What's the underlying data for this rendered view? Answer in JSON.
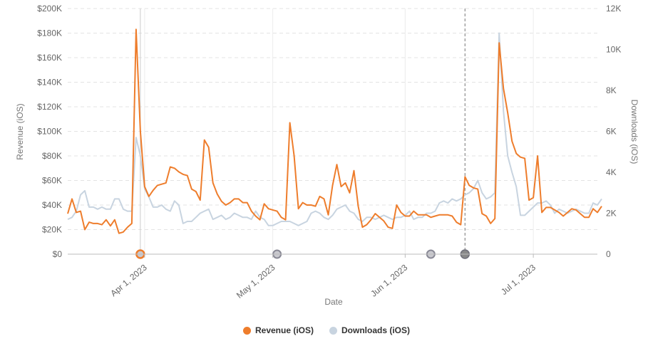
{
  "chart_data": {
    "type": "line",
    "xlabel": "Date",
    "ylabel_left": "Revenue (iOS)",
    "ylabel_right": "Downloads (iOS)",
    "y_left_ticks": [
      "$0",
      "$20K",
      "$40K",
      "$60K",
      "$80K",
      "$100K",
      "$120K",
      "$140K",
      "$160K",
      "$180K",
      "$200K"
    ],
    "y_right_ticks": [
      "0",
      "2K",
      "4K",
      "6K",
      "8K",
      "10K",
      "12K"
    ],
    "ylim_left": [
      0,
      200000
    ],
    "ylim_right": [
      0,
      12000
    ],
    "xlim": [
      "2023-03-14",
      "2023-07-16"
    ],
    "x_ticks": [
      {
        "date": "2023-04-01",
        "label": "Apr 1, 2023"
      },
      {
        "date": "2023-05-01",
        "label": "May 1, 2023"
      },
      {
        "date": "2023-06-01",
        "label": "Jun 1, 2023"
      },
      {
        "date": "2023-07-01",
        "label": "Jul 1, 2023"
      }
    ],
    "grid": true,
    "legend_position": "bottom-center",
    "start_date": "2023-03-14",
    "series": [
      {
        "name": "Revenue (iOS)",
        "axis": "left",
        "color": "#ee7d2c",
        "values": [
          33000,
          45000,
          34000,
          35000,
          20000,
          26000,
          25000,
          25000,
          24000,
          28000,
          23000,
          28000,
          17000,
          18000,
          22000,
          25000,
          183000,
          100000,
          55000,
          47000,
          52000,
          56000,
          57000,
          58000,
          71000,
          70000,
          67000,
          65000,
          64000,
          53000,
          51000,
          44000,
          93000,
          87000,
          58000,
          49000,
          43000,
          40000,
          42000,
          45000,
          45000,
          42000,
          42000,
          35000,
          31000,
          28000,
          41000,
          37000,
          36000,
          35000,
          30000,
          28000,
          107000,
          80000,
          37000,
          42000,
          40000,
          40000,
          39000,
          47000,
          45000,
          32000,
          56000,
          73000,
          55000,
          58000,
          50000,
          68000,
          39000,
          22000,
          24000,
          28000,
          33000,
          30000,
          27000,
          22000,
          21000,
          40000,
          34000,
          31000,
          31000,
          35000,
          32000,
          32000,
          32000,
          30000,
          31000,
          32000,
          32000,
          32000,
          31000,
          26000,
          24000,
          63000,
          56000,
          54000,
          53000,
          33000,
          31000,
          25000,
          29000,
          172000,
          135000,
          115000,
          92000,
          82000,
          79000,
          78000,
          44000,
          46000,
          80000,
          34000,
          38000,
          38000,
          36000,
          34000,
          31000,
          34000,
          37000,
          36000,
          33000,
          30000,
          30000,
          37000,
          34000,
          39000
        ],
        "markers": [
          {
            "date": "2023-03-31",
            "value": 0
          }
        ]
      },
      {
        "name": "Downloads (iOS)",
        "axis": "right",
        "color": "#c8d4e0",
        "values": [
          1700,
          1800,
          2100,
          2900,
          3100,
          2300,
          2300,
          2200,
          2300,
          2200,
          2200,
          2700,
          2700,
          2200,
          2100,
          2100,
          5700,
          4800,
          3200,
          2800,
          2300,
          2300,
          2400,
          2200,
          2100,
          2600,
          2400,
          1500,
          1600,
          1600,
          1800,
          2000,
          2100,
          2200,
          1700,
          1800,
          1900,
          1700,
          1800,
          2000,
          1900,
          1800,
          1800,
          1700,
          2100,
          1800,
          1700,
          1400,
          1400,
          1500,
          1600,
          1600,
          1600,
          1500,
          1400,
          1500,
          1600,
          2000,
          2100,
          2000,
          1800,
          1700,
          1900,
          2200,
          2300,
          2400,
          2100,
          2000,
          1700,
          1600,
          1800,
          1800,
          1700,
          1800,
          1900,
          1800,
          1700,
          1800,
          1800,
          1900,
          2100,
          1700,
          1800,
          1800,
          2000,
          2000,
          2100,
          2500,
          2600,
          2500,
          2700,
          2600,
          2700,
          2900,
          3000,
          3200,
          3600,
          3000,
          2700,
          2800,
          3000,
          10800,
          7000,
          4800,
          4000,
          3300,
          1900,
          1900,
          2100,
          2300,
          2500,
          2500,
          2600,
          2400,
          2000,
          2200,
          2100,
          2000,
          2100,
          2200,
          2100,
          2000,
          2000,
          2500,
          2400,
          2700
        ],
        "markers": [
          {
            "date": "2023-05-02",
            "value": 0
          },
          {
            "date": "2023-06-07",
            "value": 0
          }
        ]
      }
    ],
    "annotations": [
      {
        "date": "2023-03-31",
        "style": "solid",
        "color": "#cccccc"
      },
      {
        "date": "2023-06-15",
        "style": "dashed",
        "color": "#777777",
        "marker_color": "#888888"
      }
    ]
  }
}
